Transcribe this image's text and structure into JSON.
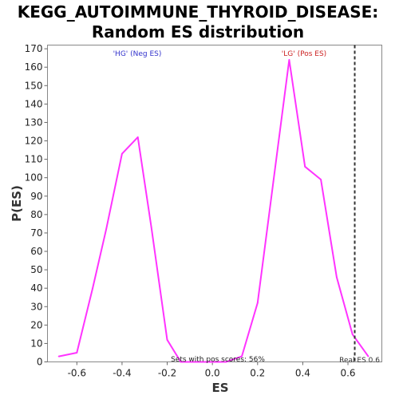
{
  "chart_data": {
    "type": "line",
    "title_lines": [
      "KEGG_AUTOIMMUNE_THYROID_DISEASE:",
      "Random ES distribution"
    ],
    "xlabel": "ES",
    "ylabel": "P(ES)",
    "xlim": [
      -0.73,
      0.75
    ],
    "ylim": [
      0,
      172
    ],
    "x_ticks": [
      -0.6,
      -0.4,
      -0.2,
      0.0,
      0.2,
      0.4,
      0.6
    ],
    "x_tick_labels": [
      "-0.6",
      "-0.4",
      "-0.2",
      "0.0",
      "0.2",
      "0.4",
      "0.6"
    ],
    "y_ticks": [
      0,
      10,
      20,
      30,
      40,
      50,
      60,
      70,
      80,
      90,
      100,
      110,
      120,
      130,
      140,
      150,
      160,
      170
    ],
    "y_tick_labels": [
      "0",
      "10",
      "20",
      "30",
      "40",
      "50",
      "60",
      "70",
      "80",
      "90",
      "100",
      "110",
      "120",
      "130",
      "140",
      "150",
      "160",
      "170"
    ],
    "grid": false,
    "series": [
      {
        "color": "#ff33ff",
        "x": [
          -0.68,
          -0.6,
          -0.53,
          -0.47,
          -0.4,
          -0.33,
          -0.27,
          -0.2,
          -0.14,
          -0.08,
          -0.01,
          0.06,
          0.13,
          0.2,
          0.27,
          0.34,
          0.41,
          0.48,
          0.55,
          0.62,
          0.69
        ],
        "y": [
          3,
          5,
          40,
          72,
          113,
          122,
          73,
          12,
          0,
          0,
          0,
          0,
          3,
          32,
          98,
          164,
          106,
          99,
          46,
          15,
          3
        ]
      }
    ],
    "real_es": {
      "x": 0.63,
      "label": "Real ES 0.6",
      "color": "#333333"
    },
    "annotations": {
      "neg": {
        "text": "'HG' (Neg ES)",
        "color": "#3333cc"
      },
      "pos": {
        "text": "'LG' (Pos ES)",
        "color": "#cc2222"
      },
      "sets": {
        "text": "Sets with pos scores: 56%",
        "color": "#222222"
      }
    }
  }
}
